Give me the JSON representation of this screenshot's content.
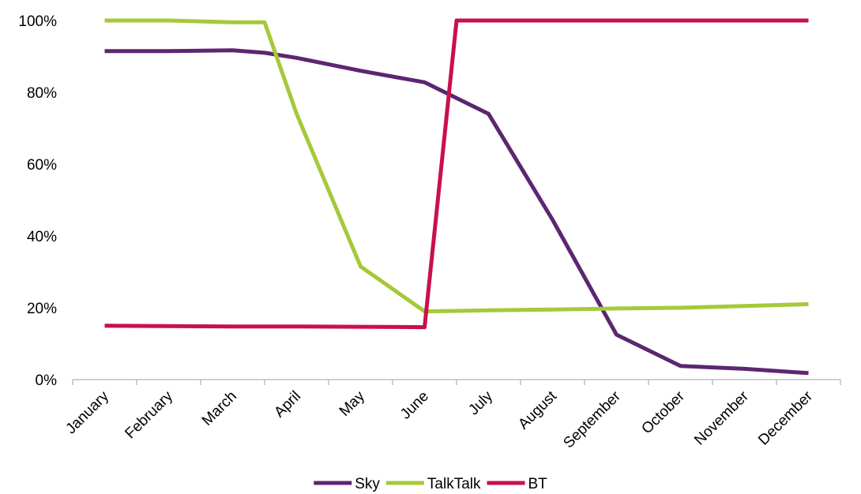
{
  "chart_data": {
    "type": "line",
    "title": "",
    "xlabel": "",
    "ylabel": "",
    "ylim": [
      0,
      100
    ],
    "y_tick_labels": [
      "0%",
      "20%",
      "40%",
      "60%",
      "80%",
      "100%"
    ],
    "categories": [
      "January",
      "February",
      "March",
      "April",
      "May",
      "June",
      "July",
      "August",
      "September",
      "October",
      "November",
      "December"
    ],
    "grid": false,
    "legend_position": "bottom",
    "x": [
      0,
      1,
      2,
      2.5,
      3,
      4,
      5,
      5.5,
      6,
      7,
      8,
      9,
      10,
      11
    ],
    "series": [
      {
        "name": "Sky",
        "color": "#5c2670",
        "values": [
          91.5,
          91.5,
          91.7,
          91.0,
          89.6,
          86.0,
          82.8,
          null,
          74.0,
          44.5,
          12.5,
          3.8,
          3.0,
          1.8
        ]
      },
      {
        "name": "TalkTalk",
        "color": "#a5c93a",
        "values": [
          100,
          100,
          99.5,
          99.5,
          74.0,
          31.5,
          19.0,
          null,
          19.3,
          19.5,
          19.8,
          20.0,
          20.5,
          21.0
        ]
      },
      {
        "name": "BT",
        "color": "#c8104d",
        "values": [
          15.0,
          14.9,
          14.8,
          null,
          14.8,
          14.7,
          14.6,
          100,
          100,
          100,
          100,
          100,
          100,
          100
        ]
      }
    ]
  }
}
